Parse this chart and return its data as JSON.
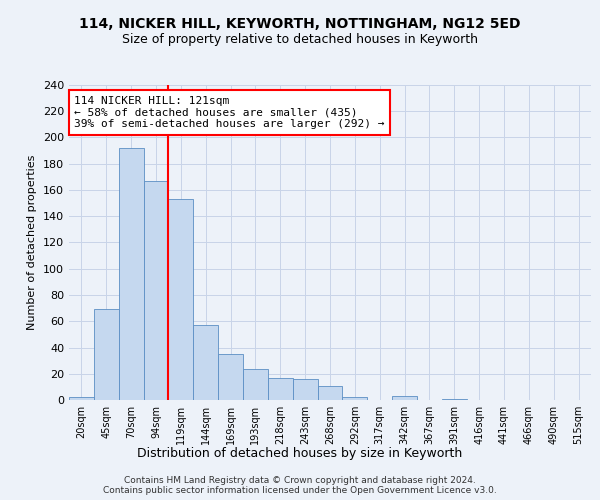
{
  "title1": "114, NICKER HILL, KEYWORTH, NOTTINGHAM, NG12 5ED",
  "title2": "Size of property relative to detached houses in Keyworth",
  "xlabel": "Distribution of detached houses by size in Keyworth",
  "ylabel": "Number of detached properties",
  "bar_values": [
    2,
    69,
    192,
    167,
    153,
    57,
    35,
    24,
    17,
    16,
    11,
    2,
    0,
    3,
    0,
    1,
    0,
    0,
    0,
    0,
    0
  ],
  "bar_labels": [
    "20sqm",
    "45sqm",
    "70sqm",
    "94sqm",
    "119sqm",
    "144sqm",
    "169sqm",
    "193sqm",
    "218sqm",
    "243sqm",
    "268sqm",
    "292sqm",
    "317sqm",
    "342sqm",
    "367sqm",
    "391sqm",
    "416sqm",
    "441sqm",
    "466sqm",
    "490sqm",
    "515sqm"
  ],
  "bar_color": "#c5d8ef",
  "bar_edge_color": "#5b8ec4",
  "bar_width": 1.0,
  "vline_bin_index": 4,
  "annotation_text": "114 NICKER HILL: 121sqm\n← 58% of detached houses are smaller (435)\n39% of semi-detached houses are larger (292) →",
  "annotation_box_color": "white",
  "annotation_box_edgecolor": "red",
  "vline_color": "red",
  "ylim": [
    0,
    240
  ],
  "yticks": [
    0,
    20,
    40,
    60,
    80,
    100,
    120,
    140,
    160,
    180,
    200,
    220,
    240
  ],
  "footer": "Contains HM Land Registry data © Crown copyright and database right 2024.\nContains public sector information licensed under the Open Government Licence v3.0.",
  "bg_color": "#edf2f9",
  "grid_color": "#c8d4e8"
}
